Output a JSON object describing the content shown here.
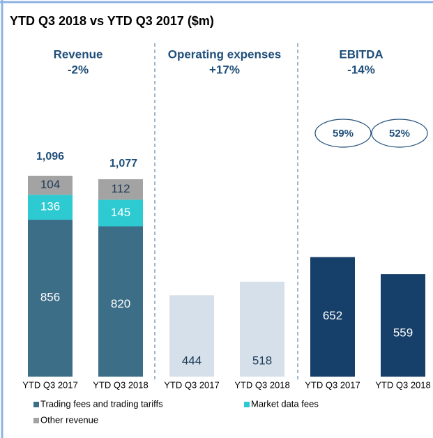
{
  "chart_data": {
    "type": "bar",
    "title": "YTD Q3 2018 vs YTD Q3 2017 ($m)",
    "groups": [
      {
        "title": "Revenue",
        "change": "-2%"
      },
      {
        "title": "Operating expenses",
        "change": "+17%"
      },
      {
        "title": "EBITDA",
        "change": "-14%"
      }
    ],
    "categories": [
      "YTD Q3 2017",
      "YTD Q3 2018",
      "YTD Q3 2017",
      "YTD Q3 2018",
      "YTD Q3 2017",
      "YTD Q3 2018"
    ],
    "series": [
      {
        "name": "Trading fees and trading tariffs",
        "color": "#3d6e87",
        "label_color": "#ffffff",
        "values": [
          856,
          820,
          null,
          null,
          null,
          null
        ]
      },
      {
        "name": "Market data fees",
        "color": "#2ecad2",
        "label_color": "#ffffff",
        "values": [
          136,
          145,
          null,
          null,
          null,
          null
        ]
      },
      {
        "name": "Other revenue",
        "color": "#a3a3a3",
        "label_color": "#1f3b57",
        "values": [
          104,
          112,
          null,
          null,
          null,
          null
        ]
      },
      {
        "color": "#d5e0ea",
        "label_color": "#1f3b57",
        "values": [
          null,
          null,
          444,
          518,
          null,
          null
        ]
      },
      {
        "color": "#163f69",
        "label_color": "#ffffff",
        "values": [
          null,
          null,
          null,
          null,
          652,
          559
        ]
      }
    ],
    "totals": {
      "values": [
        1096,
        1077,
        null,
        null,
        null,
        null
      ],
      "value_labels": [
        "1,096",
        "1,077",
        null,
        null,
        null,
        null
      ]
    },
    "ebitda_margin": {
      "values": [
        59,
        52
      ],
      "value_labels": [
        "59%",
        "52%"
      ]
    },
    "ylim": [
      0,
      1200
    ]
  }
}
